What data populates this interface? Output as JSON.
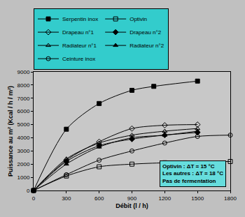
{
  "chart_data": {
    "type": "line",
    "x_label": "Débit (l / h)",
    "y_label": "Puissance au m² (Kcal / h / m²)",
    "annotations": [
      "Optivin : ΔT = 15 °C",
      "Les autres : ΔT = 18 °C",
      "Pas de fermentation"
    ],
    "xlim": [
      0,
      1800
    ],
    "ylim": [
      0,
      9000
    ],
    "xticks": [
      0,
      300,
      600,
      900,
      1200,
      1500,
      1800
    ],
    "yticks": [
      0,
      1000,
      2000,
      3000,
      4000,
      5000,
      6000,
      7000,
      8000,
      9000
    ],
    "grid": false,
    "legend": "top",
    "line_style": "solid",
    "series": [
      {
        "name": "Serpentin inox",
        "color": "#000000",
        "marker": "square",
        "x": [
          0,
          300,
          600,
          900,
          1100,
          1500
        ],
        "values": [
          0,
          4650,
          6600,
          7600,
          7900,
          8300
        ]
      },
      {
        "name": "Optivin",
        "color": "#000000",
        "marker": "square-open",
        "x": [
          0,
          300,
          600,
          900,
          1200,
          1800
        ],
        "values": [
          0,
          1100,
          1800,
          2000,
          2100,
          2200
        ]
      },
      {
        "name": "Drapeau n°1",
        "color": "#000000",
        "marker": "diamond-open",
        "x": [
          0,
          300,
          600,
          900,
          1200,
          1500
        ],
        "values": [
          0,
          2300,
          3700,
          4700,
          4950,
          5000
        ]
      },
      {
        "name": "Drapeau n°2",
        "color": "#000000",
        "marker": "diamond",
        "x": [
          0,
          300,
          600,
          900,
          1200,
          1500
        ],
        "values": [
          0,
          2200,
          3400,
          3900,
          4200,
          4400
        ]
      },
      {
        "name": "Radiateur n°1",
        "color": "#000000",
        "marker": "triangle-up-open",
        "x": [
          0,
          300,
          600,
          900,
          1200,
          1500
        ],
        "values": [
          0,
          2400,
          3600,
          4200,
          4500,
          4700
        ]
      },
      {
        "name": "Radiateur n°2",
        "color": "#000000",
        "marker": "triangle-up",
        "x": [
          0,
          300,
          600,
          900,
          1200,
          1500
        ],
        "values": [
          0,
          2000,
          3300,
          4000,
          4200,
          4500
        ]
      },
      {
        "name": "Ceinture inox",
        "color": "#000000",
        "marker": "circle-open",
        "x": [
          0,
          300,
          600,
          900,
          1200,
          1500,
          1800
        ],
        "values": [
          0,
          1200,
          2300,
          3000,
          3600,
          4100,
          4200
        ]
      }
    ]
  }
}
